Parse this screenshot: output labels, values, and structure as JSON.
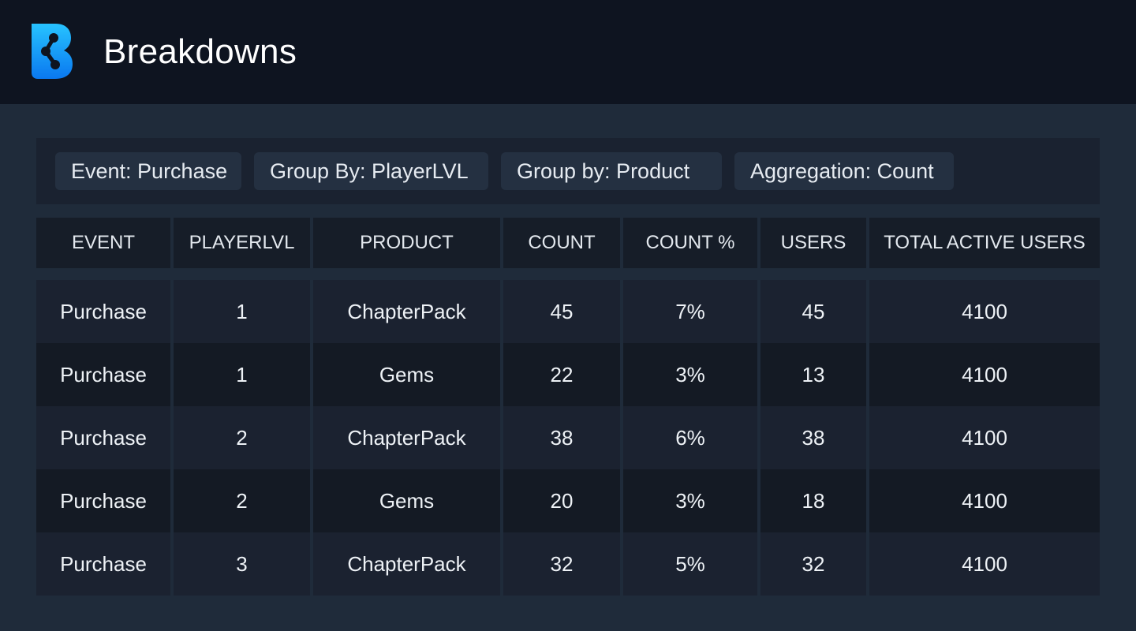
{
  "header": {
    "title": "Breakdowns",
    "logo_icon": "brand-b-logo",
    "accent_color": "#1ea6f5"
  },
  "filters": [
    {
      "label": "Event: Purchase"
    },
    {
      "label": "Group By: PlayerLVL"
    },
    {
      "label": "Group by: Product"
    },
    {
      "label": "Aggregation: Count"
    }
  ],
  "table": {
    "columns": [
      "EVENT",
      "PLAYERLVL",
      "PRODUCT",
      "COUNT",
      "COUNT %",
      "USERS",
      "TOTAL ACTIVE USERS"
    ],
    "rows": [
      [
        "Purchase",
        "1",
        "ChapterPack",
        "45",
        "7%",
        "45",
        "4100"
      ],
      [
        "Purchase",
        "1",
        "Gems",
        "22",
        "3%",
        "13",
        "4100"
      ],
      [
        "Purchase",
        "2",
        "ChapterPack",
        "38",
        "6%",
        "38",
        "4100"
      ],
      [
        "Purchase",
        "2",
        "Gems",
        "20",
        "3%",
        "18",
        "4100"
      ],
      [
        "Purchase",
        "3",
        "ChapterPack",
        "32",
        "5%",
        "32",
        "4100"
      ]
    ]
  }
}
